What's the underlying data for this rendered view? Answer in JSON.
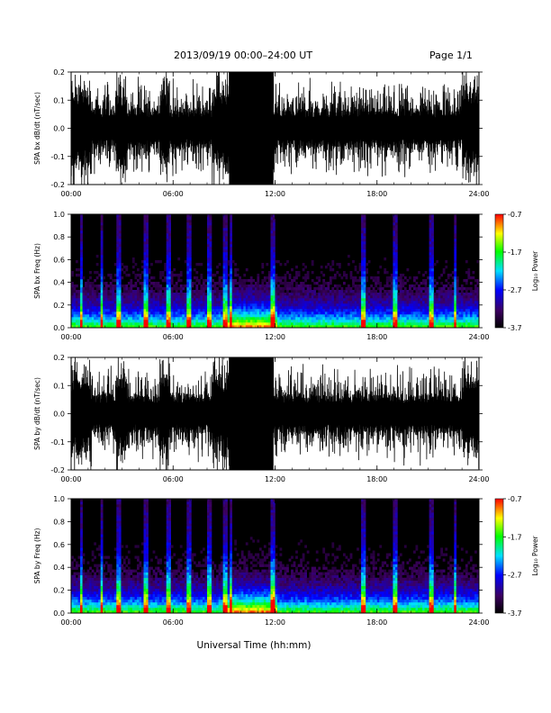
{
  "header": {
    "title": "2013/09/19  00:00–24:00 UT",
    "page": "Page 1/1"
  },
  "chart_data": {
    "type": "multi-panel time series and spectrogram",
    "xlabel": "Universal Time (hh:mm)",
    "x_ticks": [
      "00:00",
      "06:00",
      "12:00",
      "18:00",
      "24:00"
    ],
    "x_range_hours": [
      0,
      24
    ],
    "panels": [
      {
        "type": "line",
        "ylabel": "SPA bx dB/dt (nT/sec)",
        "ylim": [
          -0.2,
          0.2
        ],
        "y_ticks": [
          "0.2",
          "0.1",
          "0.0",
          "-0.1",
          "-0.2"
        ],
        "saturated_interval_hours": [
          9.3,
          11.9
        ]
      },
      {
        "type": "heatmap",
        "ylabel": "SPA bx Freq (Hz)",
        "ylim": [
          0.0,
          1.0
        ],
        "y_ticks": [
          "1.0",
          "0.8",
          "0.6",
          "0.4",
          "0.2",
          "0.0"
        ],
        "colorbar": {
          "label": "Log₁₀ Power",
          "range": [
            -3.7,
            -0.7
          ],
          "ticks": [
            "-0.7",
            "-1.7",
            "-2.7",
            "-3.7"
          ]
        },
        "bright_streak_hours": [
          0.6,
          1.8,
          2.8,
          4.4,
          5.7,
          6.9,
          8.1,
          9.1,
          9.4,
          11.9,
          17.2,
          19.1,
          21.2,
          22.6
        ]
      },
      {
        "type": "line",
        "ylabel": "SPA by dB/dt (nT/sec)",
        "ylim": [
          -0.2,
          0.2
        ],
        "y_ticks": [
          "0.2",
          "0.1",
          "0.0",
          "-0.1",
          "-0.2"
        ],
        "saturated_interval_hours": [
          9.3,
          11.9
        ]
      },
      {
        "type": "heatmap",
        "ylabel": "SPA by Freq (Hz)",
        "ylim": [
          0.0,
          1.0
        ],
        "y_ticks": [
          "1.0",
          "0.8",
          "0.6",
          "0.4",
          "0.2",
          "0.0"
        ],
        "colorbar": {
          "label": "Log₁₀ Power",
          "range": [
            -3.7,
            -0.7
          ],
          "ticks": [
            "-0.7",
            "-1.7",
            "-2.7",
            "-3.7"
          ]
        },
        "bright_streak_hours": [
          0.6,
          1.8,
          2.8,
          4.4,
          5.7,
          6.9,
          8.1,
          9.1,
          9.4,
          11.9,
          17.2,
          19.1,
          21.2,
          22.6
        ]
      }
    ]
  }
}
